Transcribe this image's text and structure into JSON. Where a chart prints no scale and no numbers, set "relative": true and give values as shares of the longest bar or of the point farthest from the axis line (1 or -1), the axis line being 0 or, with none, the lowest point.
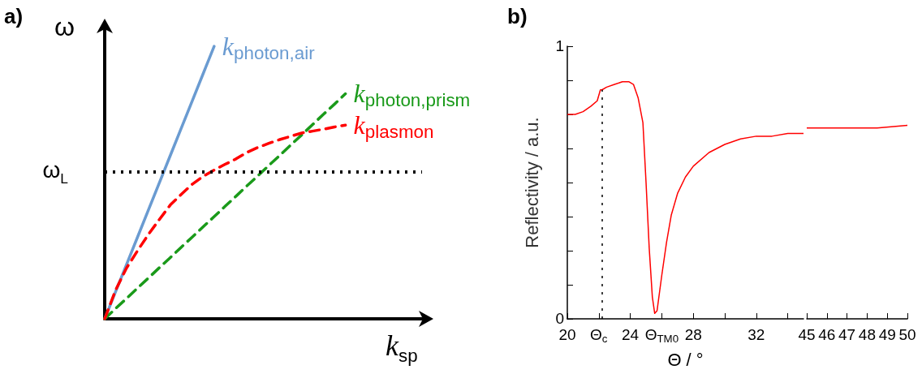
{
  "chart_data": [
    {
      "type": "line",
      "title": "a)",
      "xlabel": "k$_{sp}$",
      "ylabel": "ω",
      "relative": true,
      "grid": false,
      "tick_labels": false,
      "marker": "none",
      "categories": [
        null,
        null,
        null,
        null,
        null,
        null,
        null,
        null,
        null,
        null,
        null,
        null,
        null,
        null,
        null,
        null,
        null,
        null,
        null,
        null,
        null,
        null,
        null,
        null,
        null,
        null,
        null,
        null,
        null,
        null
      ],
      "series": [
        {
          "name": "k$_{photon,air}$",
          "color": "#6a9bd1",
          "line_style": "solid",
          "values": [
            0,
            0.1,
            0.2,
            0.3,
            0.4,
            0.5,
            0.6,
            0.7,
            0.8,
            0.9,
            1,
            null,
            null,
            null,
            null,
            null,
            null,
            null,
            null,
            null,
            null,
            null,
            null,
            null,
            null,
            null,
            null,
            null,
            null,
            null
          ]
        },
        {
          "name": "k$_{photon,prism}$",
          "color": "#1a9a1a",
          "line_style": "dashed",
          "values": [
            0,
            0.038,
            0.075,
            0.113,
            0.15,
            0.188,
            0.225,
            0.263,
            0.3,
            0.338,
            0.375,
            0.413,
            0.45,
            0.488,
            0.525,
            0.563,
            0.6,
            0.638,
            0.675,
            0.713,
            0.751,
            0.788,
            0.826,
            null,
            null,
            null,
            null,
            null,
            null,
            null
          ]
        },
        {
          "name": "k$_{plasmon}$",
          "color": "#ff0000",
          "line_style": "dashed",
          "values": [
            0,
            0.106,
            0.187,
            0.25,
            0.31,
            0.365,
            0.418,
            0.457,
            0.494,
            0.523,
            0.546,
            0.567,
            0.587,
            0.611,
            0.629,
            0.644,
            0.658,
            0.67,
            0.682,
            0.689,
            0.696,
            0.704,
            0.711,
            null,
            null,
            null,
            null,
            null,
            null,
            null
          ]
        }
      ],
      "ref_lines": [
        {
          "axis": "y",
          "value": 0.539,
          "label": "ω$_{L}$",
          "color": "#000000",
          "line_style": "dotted"
        }
      ]
    },
    {
      "type": "line",
      "title": "b)",
      "xlabel": "Θ / °",
      "ylabel": "Reflectivity / a.u.",
      "color": "#ff0000",
      "marker": "none",
      "x": [
        20,
        20.5,
        21,
        21.5,
        21.9,
        22.1,
        22.2,
        22.5,
        23,
        23.5,
        23.9,
        24.2,
        24.5,
        24.8,
        25.0,
        25.2,
        25.4,
        25.55,
        25.7,
        26.0,
        26.3,
        26.6,
        27,
        27.5,
        28,
        29,
        30,
        31,
        32,
        33,
        34,
        35
      ],
      "values": [
        0.75,
        0.75,
        0.76,
        0.78,
        0.8,
        0.84,
        0.84,
        0.85,
        0.86,
        0.87,
        0.87,
        0.86,
        0.81,
        0.72,
        0.5,
        0.26,
        0.08,
        0.02,
        0.03,
        0.16,
        0.28,
        0.38,
        0.46,
        0.52,
        0.56,
        0.61,
        0.64,
        0.66,
        0.67,
        0.67,
        0.68,
        0.68
      ],
      "xlim": [
        20,
        35
      ],
      "xticks": [
        20,
        {
          "value": 22,
          "label": "Θ$_{c}$"
        },
        24,
        {
          "value": 26,
          "label": "Θ$_{TM0}$"
        },
        28,
        {
          "value": 30,
          "label": null
        },
        32,
        {
          "value": 34,
          "label": null
        }
      ],
      "ylim": [
        0,
        1
      ],
      "yticks": [
        0,
        {
          "value": 0.125,
          "label": null
        },
        {
          "value": 0.25,
          "label": null
        },
        {
          "value": 0.375,
          "label": null
        },
        {
          "value": 0.5,
          "label": null
        },
        {
          "value": 0.625,
          "label": null
        },
        {
          "value": 0.75,
          "label": null
        },
        {
          "value": 0.875,
          "label": null
        },
        1
      ],
      "ref_lines": [
        {
          "axis": "x",
          "value": 22.2,
          "color": "#000000",
          "line_style": "dotted"
        }
      ]
    },
    {
      "type": "line",
      "color": "#ff0000",
      "marker": "none",
      "tick_labels": "x",
      "x": [
        45,
        48.5,
        50
      ],
      "values": [
        0.7,
        0.7,
        0.71
      ],
      "xlim": [
        45,
        50
      ],
      "xticks": [
        45,
        46,
        47,
        48,
        49,
        50
      ],
      "ylim": [
        0,
        1
      ]
    }
  ]
}
